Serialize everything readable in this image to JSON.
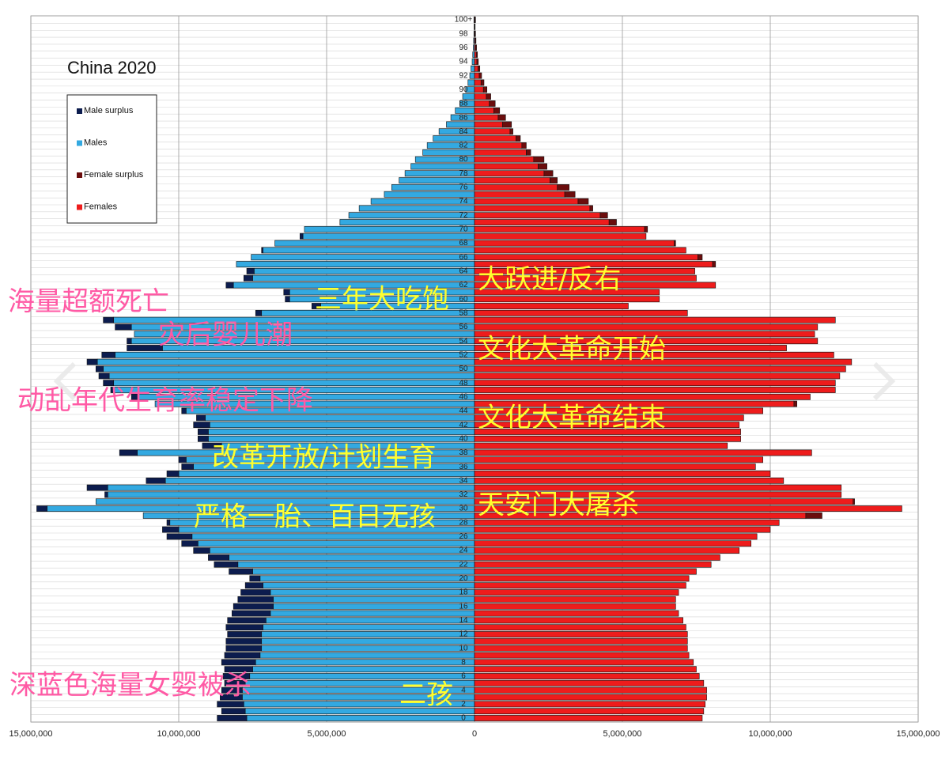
{
  "chart_data": {
    "type": "pyramid",
    "title": "China 2020",
    "categories": [
      "0",
      null,
      "2",
      null,
      "4",
      null,
      "6",
      null,
      "8",
      null,
      "10",
      null,
      "12",
      null,
      "14",
      null,
      "16",
      null,
      "18",
      null,
      "20",
      null,
      "22",
      null,
      "24",
      null,
      "26",
      null,
      "28",
      null,
      "30",
      null,
      "32",
      null,
      "34",
      null,
      "36",
      null,
      "38",
      null,
      "40",
      null,
      "42",
      null,
      "44",
      null,
      "46",
      null,
      "48",
      null,
      "50",
      null,
      "52",
      null,
      "54",
      null,
      "56",
      null,
      "58",
      null,
      "60",
      null,
      "62",
      null,
      "64",
      null,
      "66",
      null,
      "68",
      null,
      "70",
      null,
      "72",
      null,
      "74",
      null,
      "76",
      null,
      "78",
      null,
      "80",
      null,
      "82",
      null,
      "84",
      null,
      "86",
      null,
      "88",
      null,
      "90",
      null,
      "92",
      null,
      "94",
      null,
      "96",
      null,
      "98",
      null,
      "100+"
    ],
    "series": [
      {
        "name": "Male surplus",
        "color": "#0c1c4e",
        "values": [
          1000000,
          800000,
          900000,
          750000,
          700000,
          700000,
          900000,
          950000,
          1150000,
          1200000,
          1200000,
          1200000,
          1150000,
          1250000,
          1300000,
          1300000,
          1350000,
          1200000,
          1000000,
          600000,
          350000,
          800000,
          800000,
          700000,
          550000,
          550000,
          850000,
          550000,
          100000,
          0,
          350000,
          0,
          100000,
          700000,
          650000,
          400000,
          400000,
          250000,
          600000,
          650000,
          350000,
          350000,
          550000,
          300000,
          150000,
          0,
          250000,
          100000,
          350000,
          350000,
          250000,
          350000,
          450000,
          1200000,
          150000,
          0,
          550000,
          350000,
          200000,
          300000,
          150000,
          200000,
          250000,
          300000,
          250000,
          0,
          0,
          50000,
          0,
          100000,
          0,
          0,
          0,
          0,
          0,
          0,
          0,
          0,
          0,
          0,
          0,
          0,
          0,
          0,
          0,
          0,
          0,
          0,
          0,
          0,
          0,
          0,
          0,
          0,
          0,
          0,
          0,
          0,
          0,
          0,
          0
        ]
      },
      {
        "name": "Males",
        "color": "#33a9e1",
        "values": [
          7700000,
          7750000,
          7800000,
          7850000,
          7850000,
          7750000,
          7600000,
          7500000,
          7400000,
          7250000,
          7200000,
          7200000,
          7200000,
          7150000,
          7050000,
          6900000,
          6800000,
          6800000,
          6900000,
          7150000,
          7250000,
          7500000,
          8000000,
          8300000,
          8950000,
          9350000,
          9550000,
          10000000,
          10300000,
          11200000,
          14450000,
          12800000,
          12400000,
          12400000,
          10450000,
          10000000,
          9500000,
          9750000,
          11400000,
          8550000,
          9000000,
          9000000,
          8950000,
          9100000,
          9750000,
          10800000,
          11350000,
          12200000,
          12200000,
          12350000,
          12550000,
          12750000,
          12150000,
          10550000,
          11600000,
          11500000,
          11600000,
          12200000,
          7200000,
          5200000,
          6250000,
          6250000,
          8150000,
          7500000,
          7450000,
          8050000,
          7550000,
          7150000,
          6750000,
          5800000,
          5750000,
          4550000,
          4250000,
          3900000,
          3500000,
          3050000,
          2800000,
          2550000,
          2350000,
          2150000,
          2000000,
          1750000,
          1600000,
          1400000,
          1200000,
          950000,
          800000,
          650000,
          500000,
          400000,
          300000,
          220000,
          160000,
          120000,
          80000,
          60000,
          40000,
          30000,
          20000,
          12000,
          20000
        ]
      },
      {
        "name": "Female surplus",
        "color": "#6b0d0d",
        "values": [
          0,
          0,
          0,
          0,
          0,
          0,
          0,
          0,
          0,
          0,
          0,
          0,
          0,
          0,
          0,
          0,
          0,
          0,
          0,
          0,
          0,
          0,
          0,
          0,
          0,
          0,
          0,
          0,
          0,
          550000,
          0,
          50000,
          0,
          0,
          0,
          0,
          0,
          0,
          0,
          0,
          0,
          0,
          0,
          0,
          0,
          100000,
          0,
          0,
          0,
          0,
          0,
          0,
          0,
          0,
          0,
          0,
          0,
          0,
          0,
          0,
          0,
          0,
          0,
          0,
          0,
          100000,
          150000,
          0,
          50000,
          0,
          100000,
          250000,
          250000,
          100000,
          350000,
          350000,
          400000,
          250000,
          300000,
          300000,
          350000,
          150000,
          150000,
          150000,
          100000,
          300000,
          250000,
          200000,
          200000,
          150000,
          120000,
          100000,
          80000,
          60000,
          50000,
          40000,
          30000,
          20000,
          15000,
          10000,
          15000
        ]
      },
      {
        "name": "Females",
        "color": "#ee1c1c",
        "values": [
          7700000,
          7750000,
          7800000,
          7850000,
          7850000,
          7750000,
          7600000,
          7500000,
          7400000,
          7250000,
          7200000,
          7200000,
          7200000,
          7150000,
          7050000,
          6900000,
          6800000,
          6800000,
          6900000,
          7150000,
          7250000,
          7500000,
          8000000,
          8300000,
          8950000,
          9350000,
          9550000,
          10000000,
          10300000,
          11200000,
          14450000,
          12800000,
          12400000,
          12400000,
          10450000,
          10000000,
          9500000,
          9750000,
          11400000,
          8550000,
          9000000,
          9000000,
          8950000,
          9100000,
          9750000,
          10800000,
          11350000,
          12200000,
          12200000,
          12350000,
          12550000,
          12750000,
          12150000,
          10550000,
          11600000,
          11500000,
          11600000,
          12200000,
          7200000,
          5200000,
          6250000,
          6250000,
          8150000,
          7500000,
          7450000,
          8050000,
          7550000,
          7150000,
          6750000,
          5800000,
          5750000,
          4550000,
          4250000,
          3900000,
          3500000,
          3050000,
          2800000,
          2550000,
          2350000,
          2150000,
          2000000,
          1750000,
          1600000,
          1400000,
          1200000,
          950000,
          800000,
          650000,
          500000,
          400000,
          300000,
          220000,
          160000,
          120000,
          80000,
          60000,
          40000,
          30000,
          20000,
          12000,
          20000
        ]
      }
    ],
    "xlim": [
      -15000000,
      15000000
    ],
    "xticks": [
      {
        "value": -15000000,
        "label": "15,000,000"
      },
      {
        "value": -10000000,
        "label": "10,000,000"
      },
      {
        "value": -5000000,
        "label": "5,000,000"
      },
      0,
      {
        "value": 5000000,
        "label": "5,000,000"
      },
      {
        "value": 10000000,
        "label": "10,000,000"
      },
      {
        "value": 15000000,
        "label": "15,000,000"
      }
    ],
    "grid": true,
    "legend": "upper left",
    "annotations": [
      {
        "text": "海量超额死亡",
        "color": "#ff5aa5"
      },
      {
        "text": "灾后婴儿潮",
        "color": "#ff5aa5"
      },
      {
        "text": "动乱年代生育率稳定下降",
        "color": "#ff5aa5"
      },
      {
        "text": "深蓝色海量女婴被杀",
        "color": "#ff5aa5"
      },
      {
        "text": "三年大吃饱",
        "color": "#ffff2e"
      },
      {
        "text": "大跃进/反右",
        "color": "#ffff2e"
      },
      {
        "text": "文化大革命开始",
        "color": "#ffff2e"
      },
      {
        "text": "文化大革命结束",
        "color": "#ffff2e"
      },
      {
        "text": "改革开放/计划生育",
        "color": "#ffff2e"
      },
      {
        "text": "严格一胎、百日无孩",
        "color": "#ffff2e"
      },
      {
        "text": "天安门大屠杀",
        "color": "#ffff2e"
      },
      {
        "text": "二孩",
        "color": "#ffff2e"
      }
    ]
  }
}
